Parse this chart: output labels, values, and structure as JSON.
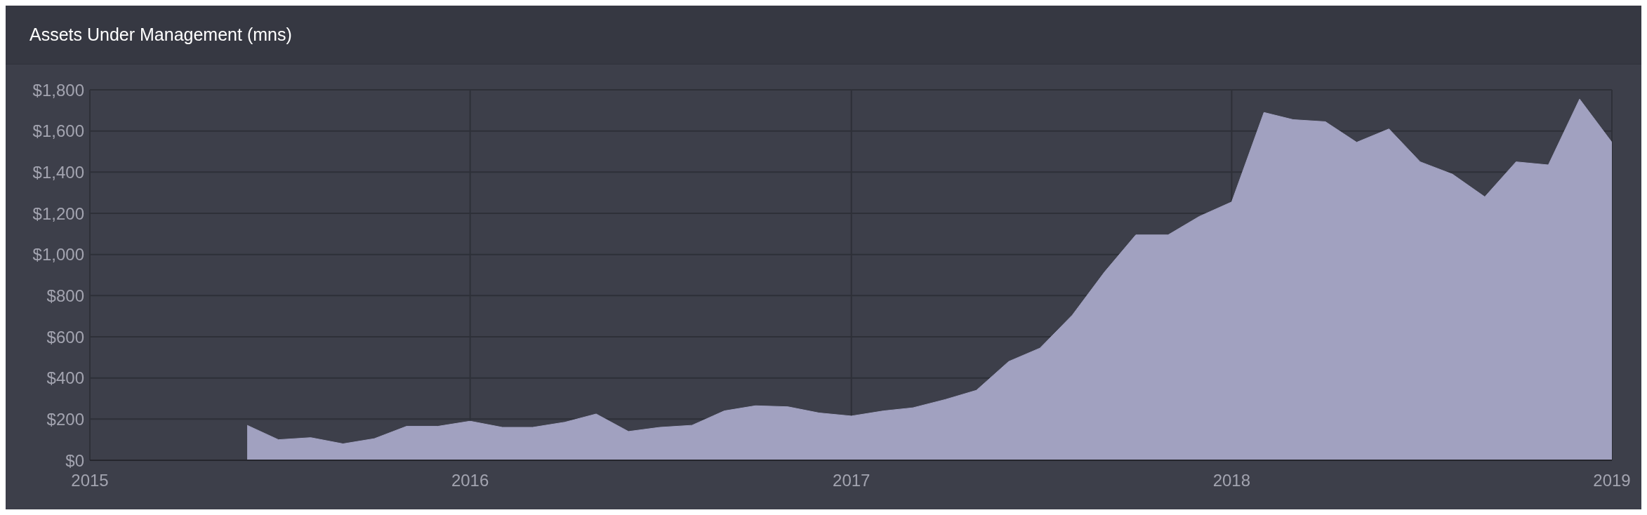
{
  "chart_data": {
    "type": "area",
    "title": "Assets Under Management (mns)",
    "x": [
      "2015-06",
      "2015-07",
      "2015-08",
      "2015-09",
      "2015-10",
      "2015-11",
      "2015-12",
      "2016-01",
      "2016-02",
      "2016-03",
      "2016-04",
      "2016-05",
      "2016-06",
      "2016-07",
      "2016-08",
      "2016-09",
      "2016-10",
      "2016-11",
      "2016-12",
      "2017-01",
      "2017-02",
      "2017-03",
      "2017-04",
      "2017-05",
      "2017-06",
      "2017-07",
      "2017-08",
      "2017-09",
      "2017-10",
      "2017-11",
      "2017-12",
      "2018-01",
      "2018-02",
      "2018-03",
      "2018-04",
      "2018-05",
      "2018-06",
      "2018-07",
      "2018-08",
      "2018-09",
      "2018-10",
      "2018-11",
      "2018-12",
      "2019-01"
    ],
    "series": [
      {
        "color": "#a1a1c0",
        "values": [
          170,
          100,
          110,
          80,
          105,
          165,
          165,
          190,
          160,
          160,
          185,
          225,
          140,
          160,
          170,
          240,
          265,
          260,
          230,
          215,
          240,
          255,
          295,
          340,
          480,
          545,
          705,
          915,
          1095,
          1095,
          1185,
          1255,
          1690,
          1655,
          1645,
          1545,
          1610,
          1450,
          1390,
          1280,
          1450,
          1435,
          1755,
          1545
        ]
      }
    ],
    "xlim": [
      "2015",
      "2019"
    ],
    "xticks": [
      "2015",
      "2016",
      "2017",
      "2018",
      "2019"
    ],
    "ylim": [
      0,
      1800
    ],
    "yticks": [
      {
        "value": 0,
        "label": "$0"
      },
      {
        "value": 200,
        "label": "$200"
      },
      {
        "value": 400,
        "label": "$400"
      },
      {
        "value": 600,
        "label": "$600"
      },
      {
        "value": 800,
        "label": "$800"
      },
      {
        "value": 1000,
        "label": "$1,000"
      },
      {
        "value": 1200,
        "label": "$1,200"
      },
      {
        "value": 1400,
        "label": "$1,400"
      },
      {
        "value": 1600,
        "label": "$1,600"
      },
      {
        "value": 1800,
        "label": "$1,800"
      }
    ],
    "grid": true,
    "legend": false
  }
}
